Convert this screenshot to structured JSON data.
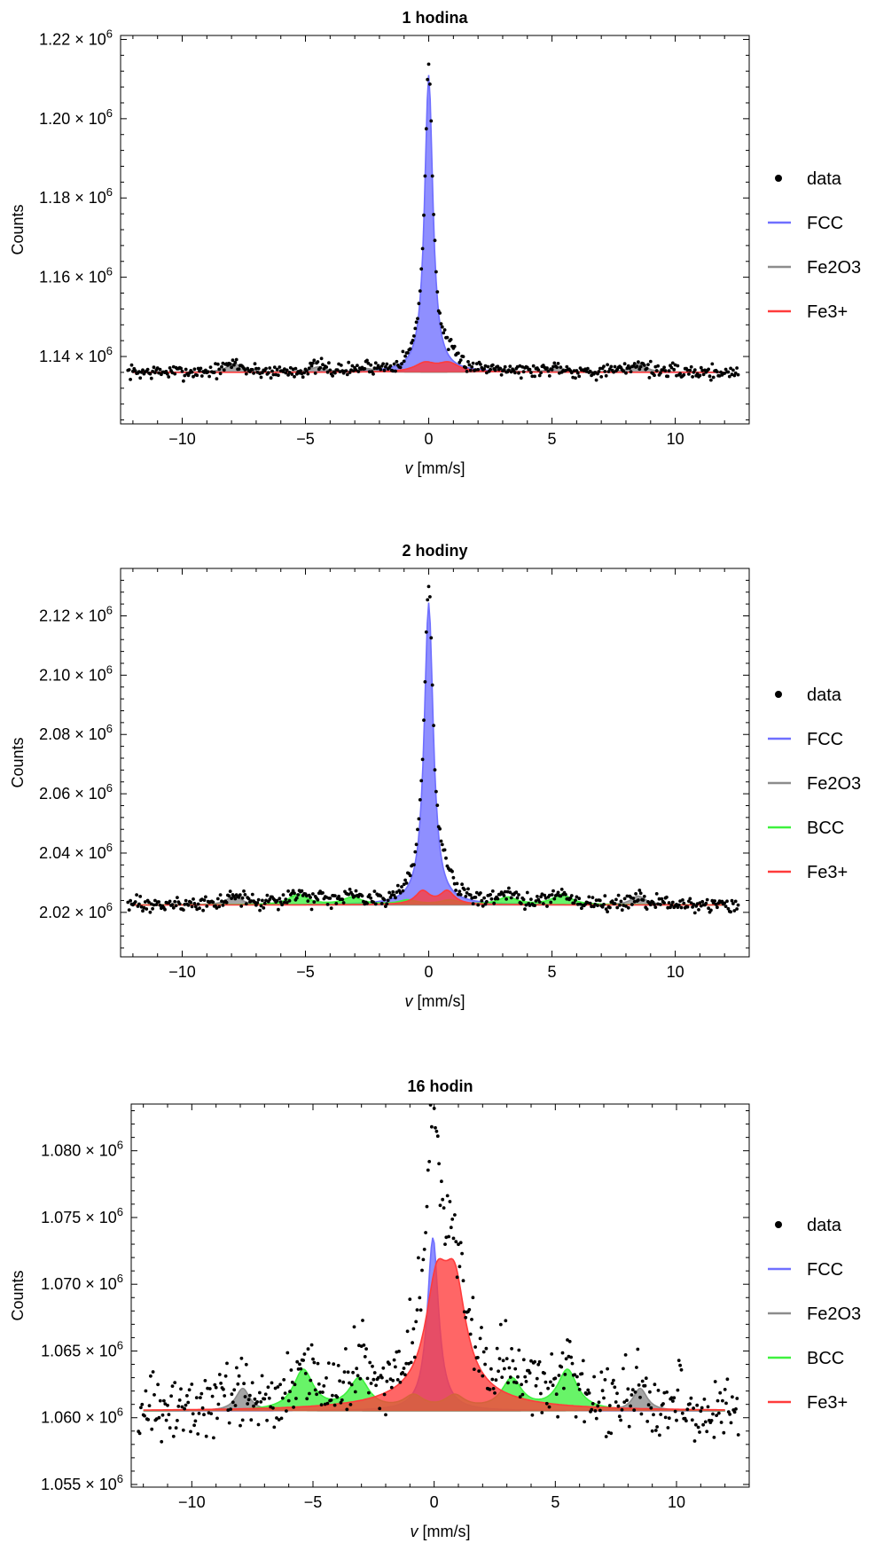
{
  "colors": {
    "data": "#000000",
    "FCC": "#6f6fff",
    "Fe2O3": "#8c8c8c",
    "BCC": "#3ef13e",
    "Fe3+": "#ff3b3b",
    "frame": "#000000",
    "background": "#ffffff"
  },
  "chart_data": [
    {
      "type": "scatter",
      "title": "1 hodina",
      "xlabel": "v [mm/s]",
      "xlabel_var": "v",
      "xlabel_unit": "[mm/s]",
      "ylabel": "Counts",
      "xlim": [
        -12.5,
        13
      ],
      "ylim": [
        1123000,
        1221000
      ],
      "xticks": [
        -10,
        -5,
        0,
        5,
        10
      ],
      "xtick_labels": [
        "−10",
        "−5",
        "0",
        "5",
        "10"
      ],
      "yticks": [
        1140000,
        1160000,
        1180000,
        1200000,
        1220000
      ],
      "ytick_labels": [
        {
          "mantissa": "1.14",
          "exp": "6"
        },
        {
          "mantissa": "1.16",
          "exp": "6"
        },
        {
          "mantissa": "1.18",
          "exp": "6"
        },
        {
          "mantissa": "1.20",
          "exp": "6"
        },
        {
          "mantissa": "1.22",
          "exp": "6"
        }
      ],
      "legend_position": "right",
      "legend": [
        {
          "label": "data",
          "kind": "point"
        },
        {
          "label": "FCC",
          "kind": "line"
        },
        {
          "label": "Fe2O3",
          "kind": "line"
        },
        {
          "label": "Fe3+",
          "kind": "line"
        }
      ],
      "baseline": 1136000,
      "noise": 900,
      "series": [
        {
          "name": "FCC",
          "components": [
            {
              "center": 0.0,
              "width": 0.2,
              "height": 75000
            }
          ]
        },
        {
          "name": "Fe2O3",
          "components": [
            {
              "center": -7.9,
              "width": 0.35,
              "height": 2200
            },
            {
              "center": -4.5,
              "width": 0.35,
              "height": 1300
            },
            {
              "center": -2.5,
              "width": 0.35,
              "height": 900
            },
            {
              "center": 2.9,
              "width": 0.35,
              "height": 900
            },
            {
              "center": 5.2,
              "width": 0.35,
              "height": 1300
            },
            {
              "center": 8.5,
              "width": 0.35,
              "height": 2200
            }
          ]
        },
        {
          "name": "Fe3+",
          "components": [
            {
              "center": -0.15,
              "width": 0.5,
              "height": 2200
            },
            {
              "center": 0.8,
              "width": 0.5,
              "height": 2200
            }
          ]
        }
      ]
    },
    {
      "type": "scatter",
      "title": "2 hodiny",
      "xlabel": "v [mm/s]",
      "xlabel_var": "v",
      "xlabel_unit": "[mm/s]",
      "ylabel": "Counts",
      "xlim": [
        -12.5,
        13
      ],
      "ylim": [
        2005000,
        2136000
      ],
      "xticks": [
        -10,
        -5,
        0,
        5,
        10
      ],
      "xtick_labels": [
        "−10",
        "−5",
        "0",
        "5",
        "10"
      ],
      "yticks": [
        2020000,
        2040000,
        2060000,
        2080000,
        2100000,
        2120000
      ],
      "ytick_labels": [
        {
          "mantissa": "2.02",
          "exp": "6"
        },
        {
          "mantissa": "2.04",
          "exp": "6"
        },
        {
          "mantissa": "2.06",
          "exp": "6"
        },
        {
          "mantissa": "2.08",
          "exp": "6"
        },
        {
          "mantissa": "2.10",
          "exp": "6"
        },
        {
          "mantissa": "2.12",
          "exp": "6"
        }
      ],
      "legend_position": "right",
      "legend": [
        {
          "label": "data",
          "kind": "point"
        },
        {
          "label": "FCC",
          "kind": "line"
        },
        {
          "label": "Fe2O3",
          "kind": "line"
        },
        {
          "label": "BCC",
          "kind": "line"
        },
        {
          "label": "Fe3+",
          "kind": "line"
        }
      ],
      "baseline": 2022500,
      "noise": 1300,
      "series": [
        {
          "name": "FCC",
          "components": [
            {
              "center": 0.0,
              "width": 0.22,
              "height": 102000
            }
          ]
        },
        {
          "name": "Fe2O3",
          "components": [
            {
              "center": -7.9,
              "width": 0.35,
              "height": 3000
            },
            {
              "center": 8.5,
              "width": 0.35,
              "height": 3000
            }
          ]
        },
        {
          "name": "BCC",
          "components": [
            {
              "center": -5.3,
              "width": 0.45,
              "height": 3500
            },
            {
              "center": -3.1,
              "width": 0.45,
              "height": 2500
            },
            {
              "center": -0.85,
              "width": 0.45,
              "height": 1500
            },
            {
              "center": 0.85,
              "width": 0.45,
              "height": 1500
            },
            {
              "center": 3.2,
              "width": 0.45,
              "height": 2500
            },
            {
              "center": 5.4,
              "width": 0.45,
              "height": 3500
            }
          ]
        },
        {
          "name": "Fe3+",
          "components": [
            {
              "center": -0.25,
              "width": 0.35,
              "height": 4500
            },
            {
              "center": 0.75,
              "width": 0.35,
              "height": 4500
            }
          ]
        }
      ]
    },
    {
      "type": "scatter",
      "title": "16 hodin",
      "xlabel": "v [mm/s]",
      "xlabel_var": "v",
      "xlabel_unit": "[mm/s]",
      "ylabel": "Counts",
      "xlim": [
        -12.5,
        13
      ],
      "ylim": [
        1054800,
        1083500
      ],
      "xticks": [
        -10,
        -5,
        0,
        5,
        10
      ],
      "xtick_labels": [
        "−10",
        "−5",
        "0",
        "5",
        "10"
      ],
      "yticks": [
        1055000,
        1060000,
        1065000,
        1070000,
        1075000,
        1080000
      ],
      "ytick_labels": [
        {
          "mantissa": "1.055",
          "exp": "6"
        },
        {
          "mantissa": "1.060",
          "exp": "6"
        },
        {
          "mantissa": "1.065",
          "exp": "6"
        },
        {
          "mantissa": "1.070",
          "exp": "6"
        },
        {
          "mantissa": "1.075",
          "exp": "6"
        },
        {
          "mantissa": "1.080",
          "exp": "6"
        }
      ],
      "legend_position": "right",
      "legend": [
        {
          "label": "data",
          "kind": "point"
        },
        {
          "label": "FCC",
          "kind": "line"
        },
        {
          "label": "Fe2O3",
          "kind": "line"
        },
        {
          "label": "BCC",
          "kind": "line"
        },
        {
          "label": "Fe3+",
          "kind": "line"
        }
      ],
      "baseline": 1060500,
      "noise": 1300,
      "series": [
        {
          "name": "FCC",
          "components": [
            {
              "center": -0.05,
              "width": 0.28,
              "height": 13000
            }
          ]
        },
        {
          "name": "Fe2O3",
          "components": [
            {
              "center": -7.9,
              "width": 0.35,
              "height": 1700
            },
            {
              "center": 8.5,
              "width": 0.35,
              "height": 1700
            }
          ]
        },
        {
          "name": "BCC",
          "components": [
            {
              "center": -5.4,
              "width": 0.5,
              "height": 3000
            },
            {
              "center": -3.1,
              "width": 0.5,
              "height": 2300
            },
            {
              "center": -0.85,
              "width": 0.5,
              "height": 1000
            },
            {
              "center": 0.85,
              "width": 0.5,
              "height": 1000
            },
            {
              "center": 3.2,
              "width": 0.5,
              "height": 2300
            },
            {
              "center": 5.5,
              "width": 0.5,
              "height": 3000
            }
          ]
        },
        {
          "name": "Fe3+",
          "components": [
            {
              "center": 0.1,
              "width": 0.55,
              "height": 7300
            },
            {
              "center": 0.85,
              "width": 0.55,
              "height": 7300
            },
            {
              "center": 0.45,
              "width": 2.5,
              "height": 1300
            }
          ]
        }
      ]
    }
  ]
}
